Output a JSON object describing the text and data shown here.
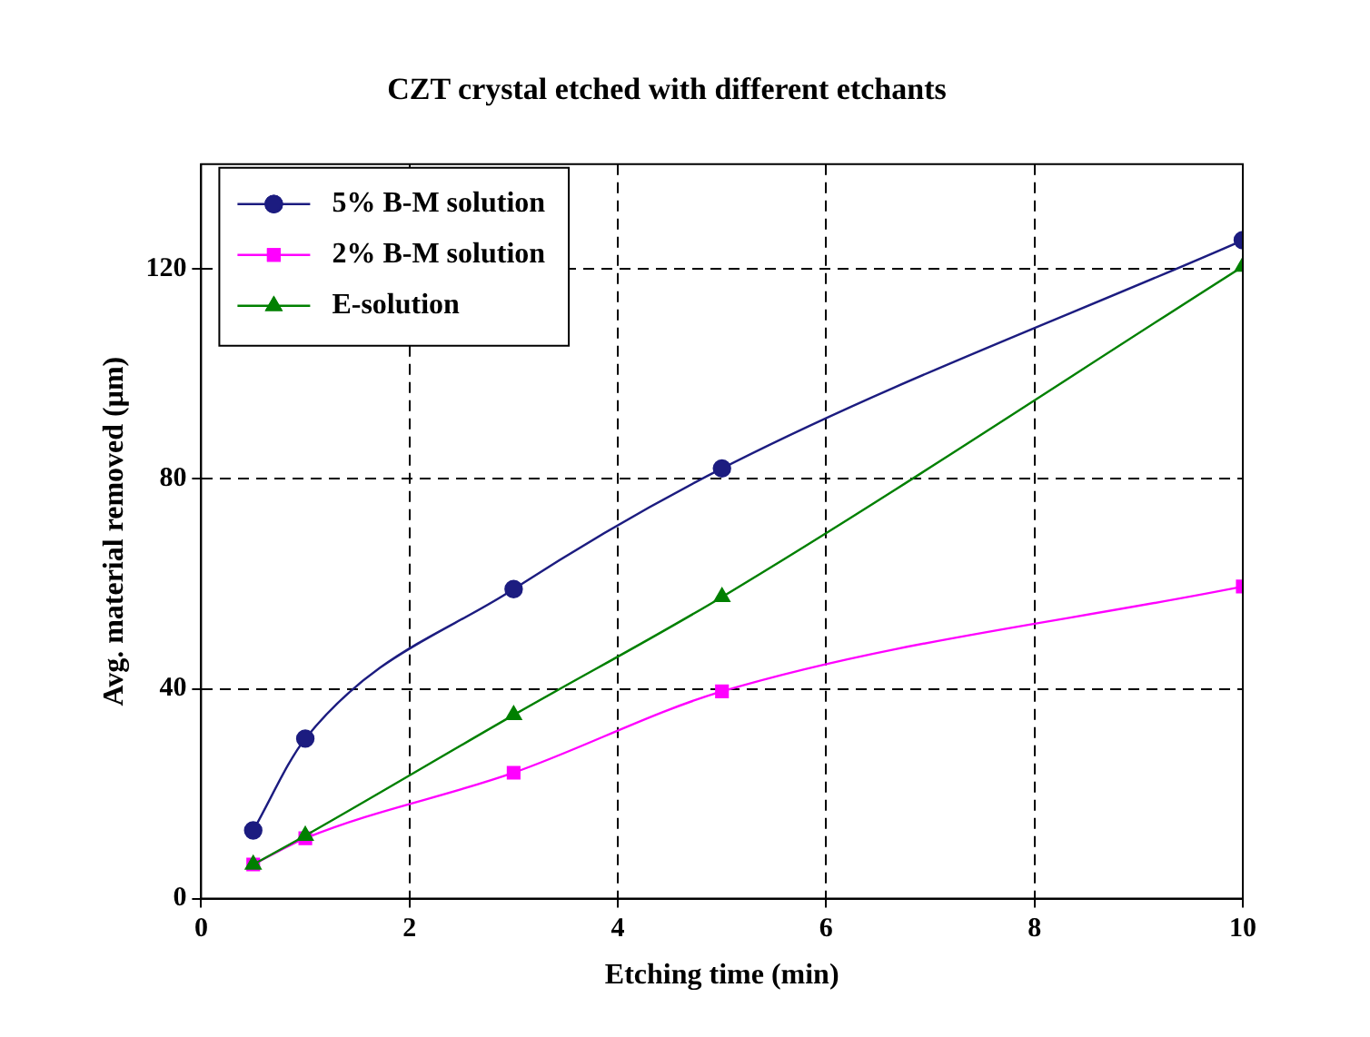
{
  "chart_data": {
    "type": "line",
    "title": "CZT crystal etched with different etchants",
    "xlabel": "Etching time (min)",
    "ylabel": "Avg. material removed (μm)",
    "xlim": [
      0,
      10
    ],
    "xticks": [
      0,
      2,
      4,
      6,
      8,
      10
    ],
    "ylim": [
      0,
      140
    ],
    "yticks": [
      0,
      40,
      80,
      120
    ],
    "grid": true,
    "legend": "top left",
    "line_style": "solid",
    "series": [
      {
        "name": "5% B-M solution",
        "color": "#1c1c80",
        "marker": "circle",
        "x": [
          0.5,
          1,
          3,
          5,
          10
        ],
        "values": [
          13,
          30.5,
          59,
          82,
          125.5
        ]
      },
      {
        "name": "2% B-M solution",
        "color": "#ff00ff",
        "marker": "square",
        "x": [
          0.5,
          1,
          3,
          5,
          10
        ],
        "values": [
          6.5,
          11.5,
          24,
          39.5,
          59.5
        ]
      },
      {
        "name": "E-solution",
        "color": "#008000",
        "marker": "triangle",
        "x": [
          0.5,
          1,
          3,
          5,
          10
        ],
        "values": [
          6.5,
          12,
          35,
          57.5,
          120.5
        ]
      }
    ]
  }
}
